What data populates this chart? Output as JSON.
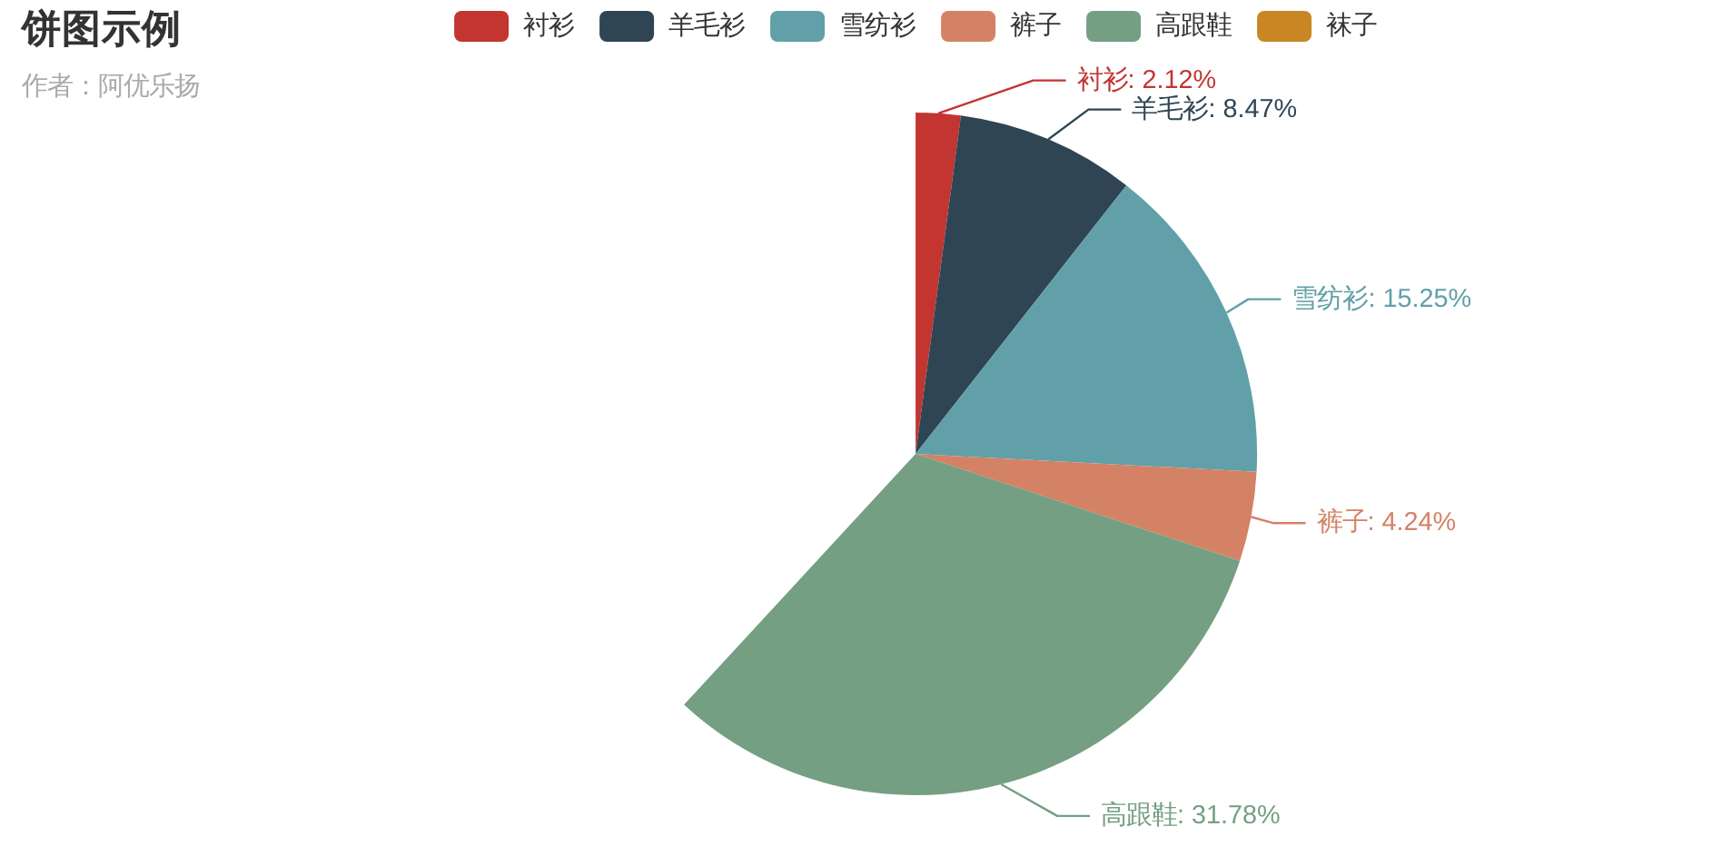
{
  "chart_data": {
    "type": "pie",
    "title": "饼图示例",
    "subtitle": "作者：阿优乐扬",
    "categories": [
      "衬衫",
      "羊毛衫",
      "雪纺衫",
      "裤子",
      "高跟鞋",
      "袜子"
    ],
    "values": [
      2.12,
      8.47,
      15.25,
      4.24,
      31.78,
      null
    ],
    "colors": [
      "#c23531",
      "#2f4554",
      "#61a0a8",
      "#d48265",
      "#749f83",
      "#ca8622"
    ],
    "value_labels": [
      "衬衫: 2.12%",
      "羊毛衫: 8.47%",
      "雪纺衫: 15.25%",
      "裤子: 4.24%",
      "高跟鞋: 31.78%",
      null
    ],
    "legend": "top"
  }
}
